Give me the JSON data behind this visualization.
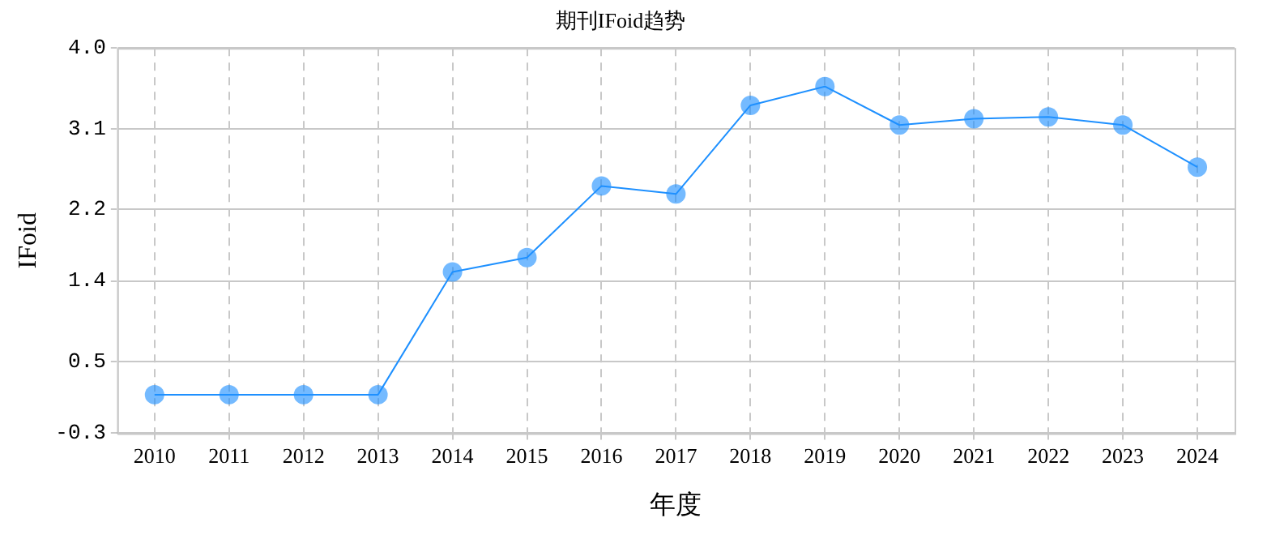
{
  "chart_data": {
    "type": "line",
    "title": "期刊IFoid趋势",
    "xlabel": "年度",
    "ylabel": "IFoid",
    "categories": [
      "2010",
      "2011",
      "2012",
      "2013",
      "2014",
      "2015",
      "2016",
      "2017",
      "2018",
      "2019",
      "2020",
      "2021",
      "2022",
      "2023",
      "2024"
    ],
    "series": [
      {
        "color": "#1e90ff",
        "values": [
          0.13,
          0.13,
          0.13,
          0.13,
          1.5,
          1.66,
          2.46,
          2.37,
          3.36,
          3.57,
          3.14,
          3.21,
          3.23,
          3.14,
          2.67
        ]
      }
    ],
    "ylim": [
      -0.3,
      4.0
    ],
    "yticks": [
      {
        "value": -0.3,
        "label": "-0.3"
      },
      {
        "value": 0.5,
        "label": "0.5"
      },
      {
        "value": 1.4,
        "label": "1.4"
      },
      {
        "value": 2.2,
        "label": "2.2"
      },
      {
        "value": 3.1,
        "label": "3.1"
      },
      {
        "value": 4.0,
        "label": "4.0"
      }
    ],
    "grid": true,
    "legend": false,
    "marker": "circle",
    "line_style": "solid"
  }
}
